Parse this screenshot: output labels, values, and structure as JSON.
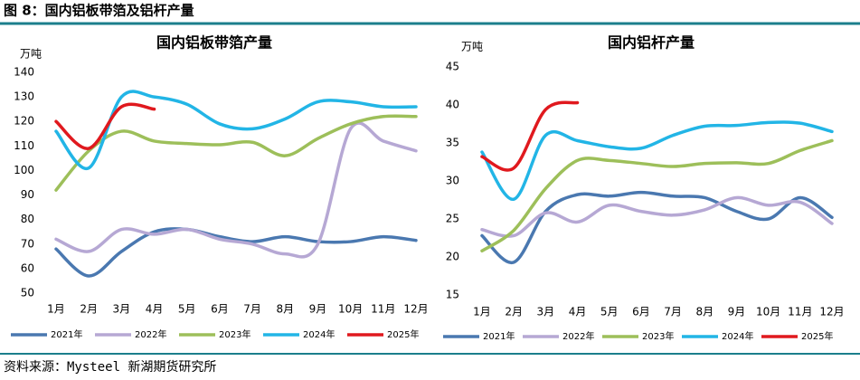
{
  "header": {
    "title": "图 8：国内铝板带箔及铝杆产量"
  },
  "source": "资料来源：Mysteel 新湖期货研究所",
  "chart_data": [
    {
      "type": "line",
      "title": "国内铝板带箔产量",
      "y_label": "万吨",
      "categories": [
        "1月",
        "2月",
        "3月",
        "4月",
        "5月",
        "6月",
        "7月",
        "8月",
        "9月",
        "10月",
        "11月",
        "12月"
      ],
      "ylim": [
        50,
        140
      ],
      "yticks": [
        50,
        60,
        70,
        80,
        90,
        100,
        110,
        120,
        130,
        140
      ],
      "grid": false,
      "legend": "bottom",
      "series": [
        {
          "name": "2021年",
          "color": "#4a78b0",
          "values": [
            68,
            57,
            67,
            75,
            76,
            73,
            71,
            73,
            71,
            71,
            73,
            71.5
          ]
        },
        {
          "name": "2022年",
          "color": "#b6a8d4",
          "values": [
            72,
            67,
            76,
            74,
            76,
            72,
            70,
            66,
            70,
            117,
            112,
            108
          ]
        },
        {
          "name": "2023年",
          "color": "#9dbf5a",
          "values": [
            92,
            108,
            116,
            112,
            111,
            110.5,
            111.5,
            106,
            113,
            119,
            122,
            122
          ]
        },
        {
          "name": "2024年",
          "color": "#22b5e6",
          "values": [
            116,
            101,
            130,
            130,
            127,
            119,
            117,
            121,
            128,
            128,
            126,
            126
          ]
        },
        {
          "name": "2025年",
          "color": "#e0191e",
          "values": [
            120,
            109,
            126,
            125,
            null,
            null,
            null,
            null,
            null,
            null,
            null,
            null
          ]
        }
      ]
    },
    {
      "type": "line",
      "title": "国内铝杆产量",
      "y_label": "万吨",
      "categories": [
        "1月",
        "2月",
        "3月",
        "4月",
        "5月",
        "6月",
        "7月",
        "8月",
        "9月",
        "10月",
        "11月",
        "12月"
      ],
      "ylim": [
        15,
        45
      ],
      "yticks": [
        15,
        20,
        25,
        30,
        35,
        40,
        45
      ],
      "grid": false,
      "legend": "bottom",
      "series": [
        {
          "name": "2021年",
          "color": "#4a78b0",
          "values": [
            22.8,
            19.3,
            26,
            28.2,
            28,
            28.5,
            28,
            27.8,
            26,
            25,
            27.8,
            25.2
          ]
        },
        {
          "name": "2022年",
          "color": "#b6a8d4",
          "values": [
            23.6,
            22.8,
            25.8,
            24.6,
            26.8,
            26,
            25.5,
            26.2,
            27.8,
            26.8,
            27.2,
            24.4
          ]
        },
        {
          "name": "2023年",
          "color": "#9dbf5a",
          "values": [
            20.8,
            23.5,
            29,
            32.7,
            32.7,
            32.3,
            31.9,
            32.3,
            32.4,
            32.3,
            34,
            35.3
          ]
        },
        {
          "name": "2024年",
          "color": "#22b5e6",
          "values": [
            33.8,
            27.6,
            36,
            35.3,
            34.5,
            34.3,
            36,
            37.2,
            37.3,
            37.7,
            37.6,
            36.5
          ]
        },
        {
          "name": "2025年",
          "color": "#e0191e",
          "values": [
            33.2,
            31.7,
            39.4,
            40.3,
            null,
            null,
            null,
            null,
            null,
            null,
            null,
            null
          ]
        }
      ]
    }
  ]
}
